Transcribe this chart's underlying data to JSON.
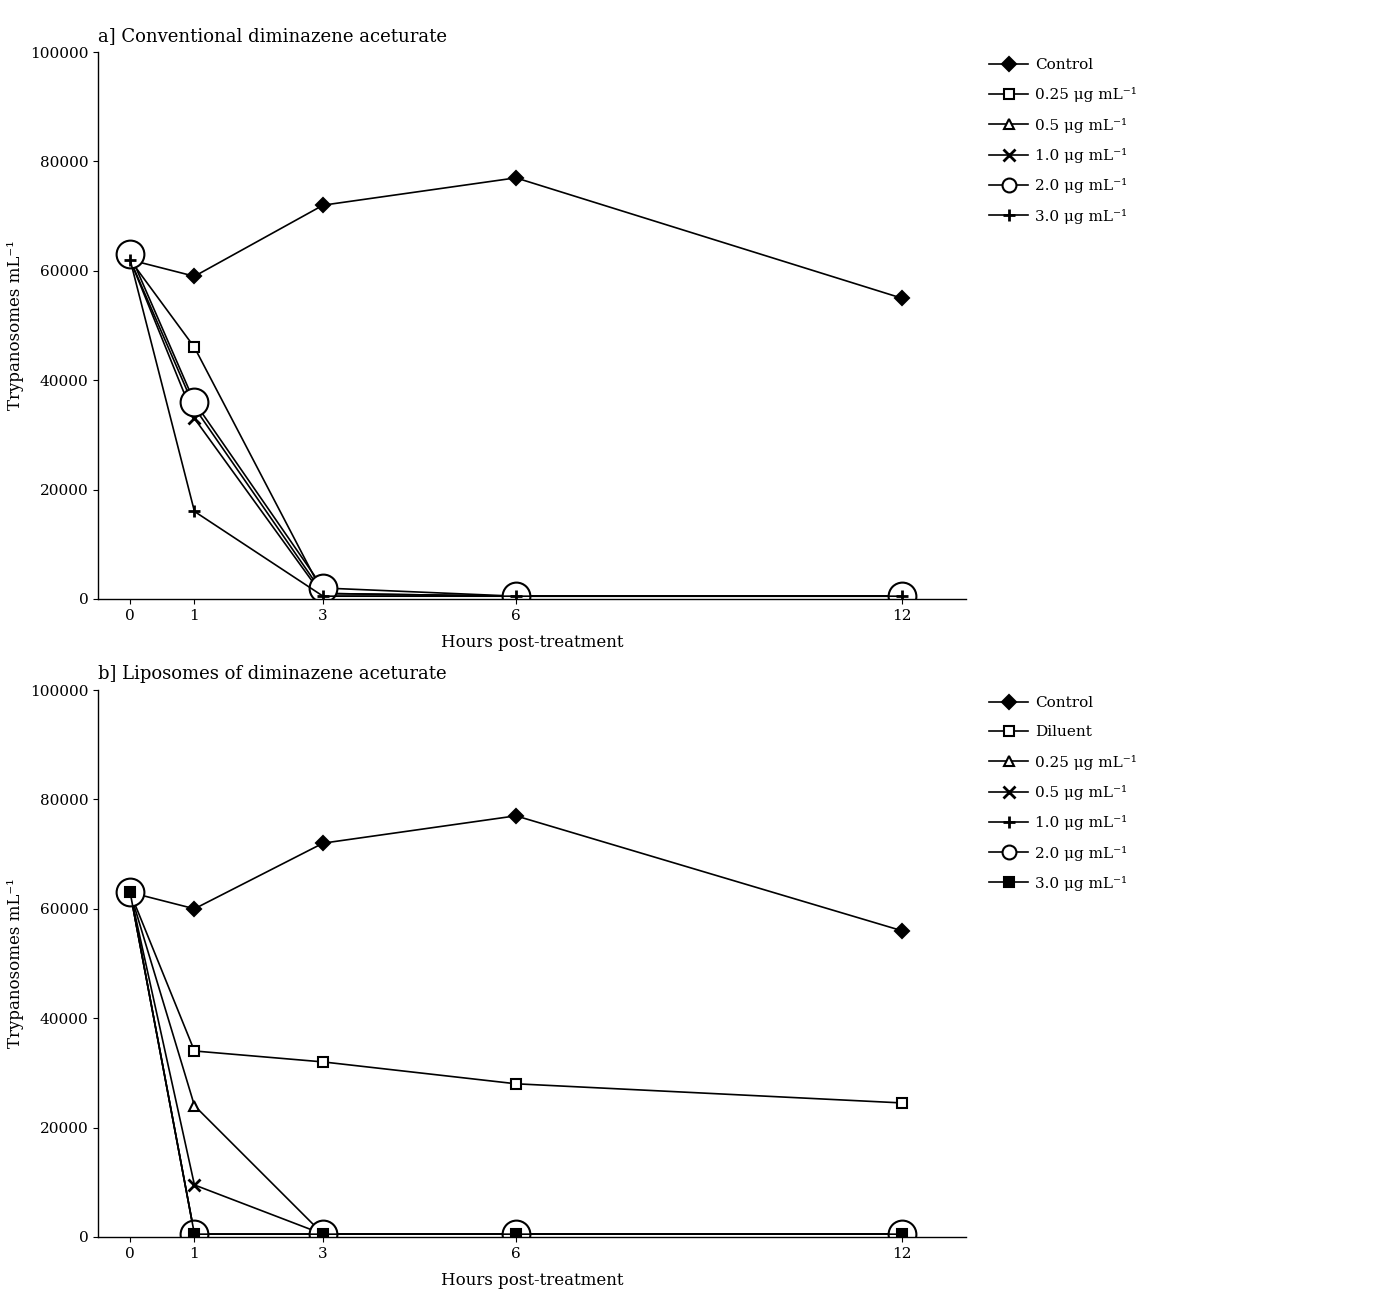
{
  "x": [
    0,
    1,
    3,
    6,
    12
  ],
  "panel_a": {
    "title": "a] Conventional diminazene aceturate",
    "series": [
      {
        "label": "Control",
        "marker": "D",
        "markersize": 7,
        "markerfacecolor": "black",
        "linestyle": "-",
        "color": "black",
        "y": [
          62000,
          59000,
          72000,
          77000,
          55000
        ]
      },
      {
        "label": "0.25 μg mL⁻¹",
        "marker": "s",
        "markersize": 7,
        "markerfacecolor": "white",
        "linestyle": "-",
        "color": "black",
        "y": [
          62000,
          46000,
          1000,
          500,
          500
        ]
      },
      {
        "label": "0.5 μg mL⁻¹",
        "marker": "^",
        "markersize": 7,
        "markerfacecolor": "white",
        "linestyle": "-",
        "color": "black",
        "y": [
          62000,
          35000,
          1000,
          500,
          500
        ]
      },
      {
        "label": "1.0 μg mL⁻¹",
        "marker": "x",
        "markersize": 8,
        "markerfacecolor": "black",
        "linestyle": "-",
        "color": "black",
        "y": [
          62000,
          33000,
          500,
          500,
          500
        ]
      },
      {
        "label": "2.0 μg mL⁻¹",
        "marker": "o",
        "markersize": 20,
        "markerfacecolor": "white",
        "linestyle": "-",
        "color": "black",
        "y": [
          63000,
          36000,
          2000,
          500,
          500
        ]
      },
      {
        "label": "3.0 μg mL⁻¹",
        "marker": "+",
        "markersize": 9,
        "markerfacecolor": "black",
        "linestyle": "-",
        "color": "black",
        "y": [
          62000,
          16000,
          500,
          500,
          500
        ]
      }
    ]
  },
  "panel_b": {
    "title": "b] Liposomes of diminazene aceturate",
    "series": [
      {
        "label": "Control",
        "marker": "D",
        "markersize": 7,
        "markerfacecolor": "black",
        "linestyle": "-",
        "color": "black",
        "y": [
          63000,
          60000,
          72000,
          77000,
          56000
        ]
      },
      {
        "label": "Diluent",
        "marker": "s",
        "markersize": 7,
        "markerfacecolor": "white",
        "linestyle": "-",
        "color": "black",
        "y": [
          63000,
          34000,
          32000,
          28000,
          24500
        ]
      },
      {
        "label": "0.25 μg mL⁻¹",
        "marker": "^",
        "markersize": 7,
        "markerfacecolor": "white",
        "linestyle": "-",
        "color": "black",
        "y": [
          63000,
          24000,
          500,
          500,
          500
        ]
      },
      {
        "label": "0.5 μg mL⁻¹",
        "marker": "x",
        "markersize": 8,
        "markerfacecolor": "black",
        "linestyle": "-",
        "color": "black",
        "y": [
          63000,
          9500,
          500,
          500,
          500
        ]
      },
      {
        "label": "1.0 μg mL⁻¹",
        "marker": "+",
        "markersize": 9,
        "markerfacecolor": "black",
        "linestyle": "-",
        "color": "black",
        "y": [
          63000,
          500,
          500,
          500,
          500
        ]
      },
      {
        "label": "2.0 μg mL⁻¹",
        "marker": "o",
        "markersize": 20,
        "markerfacecolor": "white",
        "linestyle": "-",
        "color": "black",
        "y": [
          63000,
          500,
          500,
          500,
          500
        ]
      },
      {
        "label": "3.0 μg mL⁻¹",
        "marker": "s",
        "markersize": 7,
        "markerfacecolor": "black",
        "linestyle": "-",
        "color": "black",
        "y": [
          63000,
          500,
          500,
          500,
          500
        ]
      }
    ]
  },
  "ylabel": "Trypanosomes mL⁻¹",
  "xlabel": "Hours post-treatment",
  "ylim": [
    0,
    100000
  ],
  "yticks": [
    0,
    20000,
    40000,
    60000,
    80000,
    100000
  ],
  "xticks": [
    0,
    1,
    3,
    6,
    12
  ],
  "background_color": "white",
  "title_fontsize": 13,
  "label_fontsize": 12,
  "tick_fontsize": 11,
  "legend_fontsize": 11
}
